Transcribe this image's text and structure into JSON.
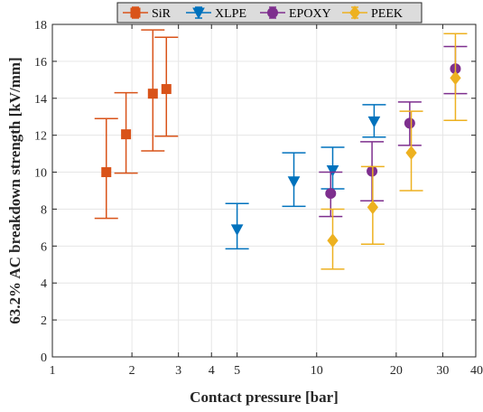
{
  "chart_data": {
    "type": "scatter",
    "xscale": "log",
    "xlim": [
      1,
      40
    ],
    "ylim": [
      0,
      18
    ],
    "xticks": [
      1,
      2,
      3,
      4,
      5,
      10,
      20,
      30,
      40
    ],
    "yticks": [
      0,
      2,
      4,
      6,
      8,
      10,
      12,
      14,
      16,
      18
    ],
    "xlabel": "Contact pressure [bar]",
    "ylabel": "63.2% AC breakdown strength [kV/mm]",
    "grid": true,
    "legend": {
      "position": "top-center",
      "orientation": "horizontal"
    },
    "series": [
      {
        "name": "SiR",
        "color": "#D95319",
        "marker": "square",
        "points": [
          {
            "x": 1.6,
            "y": 10.0,
            "lo": 7.5,
            "hi": 12.9
          },
          {
            "x": 1.9,
            "y": 12.05,
            "lo": 9.95,
            "hi": 14.3
          },
          {
            "x": 2.4,
            "y": 14.25,
            "lo": 11.15,
            "hi": 17.7
          },
          {
            "x": 2.7,
            "y": 14.5,
            "lo": 11.95,
            "hi": 17.3
          }
        ]
      },
      {
        "name": "XLPE",
        "color": "#0072BD",
        "marker": "triangle-down",
        "points": [
          {
            "x": 5.0,
            "y": 6.9,
            "lo": 5.85,
            "hi": 8.3
          },
          {
            "x": 8.2,
            "y": 9.5,
            "lo": 8.15,
            "hi": 11.05
          },
          {
            "x": 11.5,
            "y": 10.1,
            "lo": 9.1,
            "hi": 11.35
          },
          {
            "x": 16.5,
            "y": 12.75,
            "lo": 11.9,
            "hi": 13.65
          }
        ]
      },
      {
        "name": "EPOXY",
        "color": "#7E2F8E",
        "marker": "circle",
        "points": [
          {
            "x": 11.3,
            "y": 8.85,
            "lo": 7.6,
            "hi": 10.0
          },
          {
            "x": 16.2,
            "y": 10.05,
            "lo": 8.45,
            "hi": 11.65
          },
          {
            "x": 22.5,
            "y": 12.65,
            "lo": 11.45,
            "hi": 13.8
          },
          {
            "x": 33.5,
            "y": 15.6,
            "lo": 14.25,
            "hi": 16.8
          }
        ]
      },
      {
        "name": "PEEK",
        "color": "#EDB120",
        "marker": "diamond",
        "points": [
          {
            "x": 11.5,
            "y": 6.3,
            "lo": 4.75,
            "hi": 8.0
          },
          {
            "x": 16.3,
            "y": 8.1,
            "lo": 6.1,
            "hi": 10.3
          },
          {
            "x": 22.8,
            "y": 11.05,
            "lo": 9.0,
            "hi": 13.3
          },
          {
            "x": 33.5,
            "y": 15.1,
            "lo": 12.8,
            "hi": 17.5
          }
        ]
      }
    ]
  }
}
